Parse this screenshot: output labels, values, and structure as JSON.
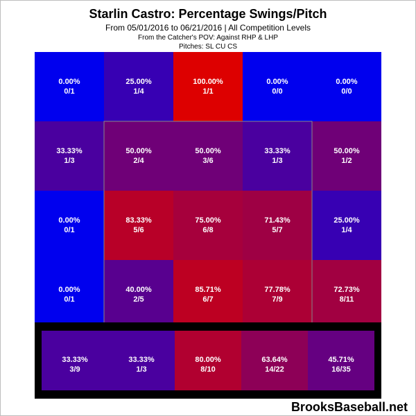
{
  "title": "Starlin Castro: Percentage Swings/Pitch",
  "subtitle": "From 05/01/2016 to 06/21/2016 | All Competition Levels",
  "pov_line": "From the Catcher's POV:   Against RHP & LHP",
  "pitches_line": "Pitches:  SL  CU  CS",
  "watermark": "BrooksBaseball.net",
  "colors": {
    "low": "#0000ee",
    "high": "#dd0000",
    "zone_border": "#888888",
    "bottom_band": "#000000"
  },
  "chart_data": {
    "type": "heatmap",
    "rows": [
      [
        {
          "pct": "0.00%",
          "frac": "0/1",
          "value": 0
        },
        {
          "pct": "25.00%",
          "frac": "1/4",
          "value": 25
        },
        {
          "pct": "100.00%",
          "frac": "1/1",
          "value": 100
        },
        {
          "pct": "0.00%",
          "frac": "0/0",
          "value": 0
        },
        {
          "pct": "0.00%",
          "frac": "0/0",
          "value": 0
        }
      ],
      [
        {
          "pct": "33.33%",
          "frac": "1/3",
          "value": 33.33
        },
        {
          "pct": "50.00%",
          "frac": "2/4",
          "value": 50
        },
        {
          "pct": "50.00%",
          "frac": "3/6",
          "value": 50
        },
        {
          "pct": "33.33%",
          "frac": "1/3",
          "value": 33.33
        },
        {
          "pct": "50.00%",
          "frac": "1/2",
          "value": 50
        }
      ],
      [
        {
          "pct": "0.00%",
          "frac": "0/1",
          "value": 0
        },
        {
          "pct": "83.33%",
          "frac": "5/6",
          "value": 83.33
        },
        {
          "pct": "75.00%",
          "frac": "6/8",
          "value": 75
        },
        {
          "pct": "71.43%",
          "frac": "5/7",
          "value": 71.43
        },
        {
          "pct": "25.00%",
          "frac": "1/4",
          "value": 25
        }
      ],
      [
        {
          "pct": "0.00%",
          "frac": "0/1",
          "value": 0
        },
        {
          "pct": "40.00%",
          "frac": "2/5",
          "value": 40
        },
        {
          "pct": "85.71%",
          "frac": "6/7",
          "value": 85.71
        },
        {
          "pct": "77.78%",
          "frac": "7/9",
          "value": 77.78
        },
        {
          "pct": "72.73%",
          "frac": "8/11",
          "value": 72.73
        }
      ]
    ],
    "bottom_row": [
      {
        "pct": "33.33%",
        "frac": "3/9",
        "value": 33.33
      },
      {
        "pct": "33.33%",
        "frac": "1/3",
        "value": 33.33
      },
      {
        "pct": "80.00%",
        "frac": "8/10",
        "value": 80
      },
      {
        "pct": "63.64%",
        "frac": "14/22",
        "value": 63.64
      },
      {
        "pct": "45.71%",
        "frac": "16/35",
        "value": 45.71
      }
    ]
  }
}
